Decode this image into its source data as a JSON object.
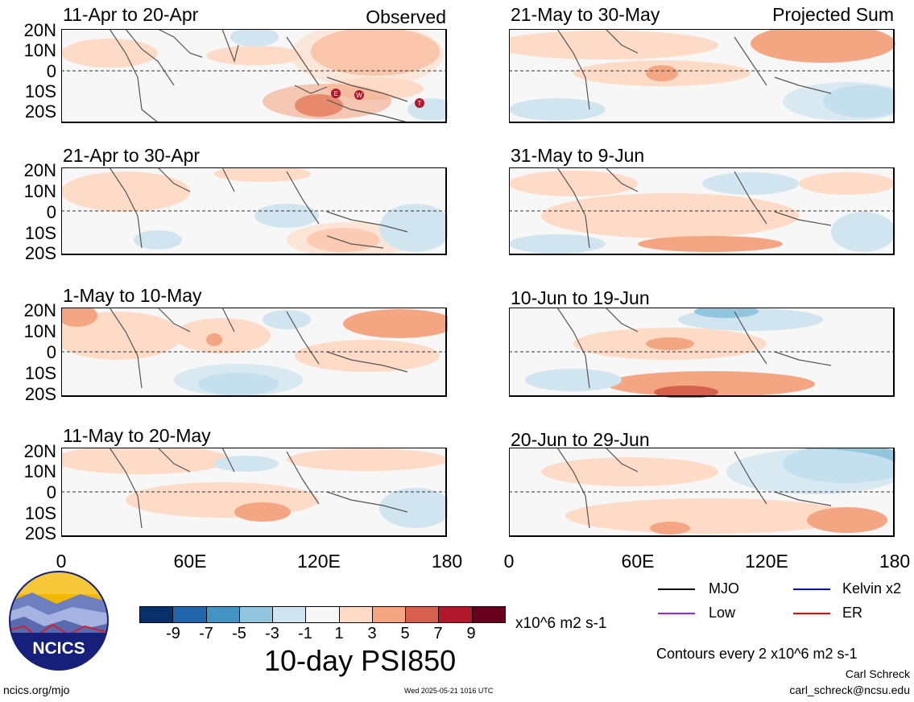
{
  "panels": [
    {
      "title": "11-Apr to 20-Apr",
      "tag": "Observed"
    },
    {
      "title": "21-Apr to 30-Apr",
      "tag": ""
    },
    {
      "title": "1-May to 10-May",
      "tag": ""
    },
    {
      "title": "11-May to 20-May",
      "tag": ""
    },
    {
      "title": "21-May to 30-May",
      "tag": "Projected Sum"
    },
    {
      "title": "31-May to 9-Jun",
      "tag": ""
    },
    {
      "title": "10-Jun to 19-Jun",
      "tag": ""
    },
    {
      "title": "20-Jun to 29-Jun",
      "tag": ""
    }
  ],
  "lat_labels": [
    "20N",
    "10N",
    "0",
    "10S",
    "20S"
  ],
  "lon_labels": [
    "0",
    "60E",
    "120E",
    "180"
  ],
  "storm_markers": [
    "E",
    "W",
    "T"
  ],
  "colorbar": {
    "colors": [
      "#08306b",
      "#2166ac",
      "#4393c3",
      "#92c5de",
      "#d1e5f0",
      "#f7f7f7",
      "#fddbc7",
      "#f4a582",
      "#d6604d",
      "#b2182b",
      "#67001f"
    ],
    "labels": [
      "-9",
      "-7",
      "-5",
      "-3",
      "-1",
      "1",
      "3",
      "5",
      "7",
      "9"
    ],
    "units": "x10^6 m2 s-1"
  },
  "product_title": "10-day PSI850",
  "legend": [
    {
      "label": "MJO",
      "color": "#000000"
    },
    {
      "label": "Kelvin x2",
      "color": "#0000ff"
    },
    {
      "label": "Low",
      "color": "#a020f0"
    },
    {
      "label": "ER",
      "color": "#ff0000"
    }
  ],
  "contour_note": "Contours every 2 x10^6 m2 s-1",
  "author": "Carl Schreck",
  "email": "carl_schreck@ncsu.edu",
  "site": "ncics.org/mjo",
  "timestamp": "Wed 2025-05-21 1016 UTC",
  "logo_text": "NCICS"
}
